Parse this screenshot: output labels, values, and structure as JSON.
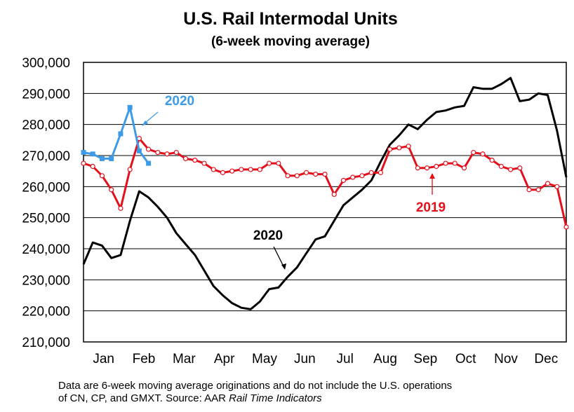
{
  "chart_data": {
    "type": "line",
    "title": "U.S. Rail Intermodal Units",
    "subtitle": "(6-week moving average)",
    "xlabel": "",
    "ylabel": "",
    "ylim": [
      210000,
      300000
    ],
    "yticks": [
      "300,000",
      "290,000",
      "280,000",
      "270,000",
      "260,000",
      "250,000",
      "240,000",
      "230,000",
      "220,000",
      "210,000"
    ],
    "ytick_values": [
      300000,
      290000,
      280000,
      270000,
      260000,
      250000,
      240000,
      230000,
      220000,
      210000
    ],
    "month_labels": [
      "Jan",
      "Feb",
      "Mar",
      "Apr",
      "May",
      "Jun",
      "Jul",
      "Aug",
      "Sep",
      "Oct",
      "Nov",
      "Dec"
    ],
    "weeks_total": 52,
    "series": [
      {
        "name": "2020",
        "color": "#000000",
        "marker": "none",
        "values": [
          235000,
          242000,
          241000,
          237000,
          238000,
          249000,
          258500,
          256500,
          253500,
          250000,
          245000,
          241500,
          238000,
          233000,
          228000,
          225000,
          222500,
          221000,
          220500,
          223000,
          227000,
          227500,
          231000,
          234000,
          238500,
          243000,
          244000,
          249000,
          254000,
          256500,
          259000,
          262000,
          268000,
          273500,
          276500,
          280000,
          278500,
          281500,
          284000,
          284500,
          285500,
          286000,
          292000,
          291500,
          291500,
          293000,
          295000,
          287500,
          288000,
          290000,
          289500,
          278000,
          263000
        ]
      },
      {
        "name": "2019",
        "color": "#e3101c",
        "marker": "circle",
        "values": [
          267500,
          266500,
          263500,
          259000,
          253000,
          265500,
          275500,
          272000,
          271000,
          270500,
          271000,
          269000,
          268500,
          267500,
          265500,
          264500,
          265000,
          265500,
          265500,
          265500,
          267500,
          267500,
          263500,
          263500,
          264500,
          264000,
          264000,
          257500,
          262000,
          263000,
          263500,
          264500,
          264500,
          272000,
          272500,
          273000,
          266000,
          266000,
          266500,
          267500,
          267500,
          266000,
          271000,
          270500,
          268500,
          266500,
          265500,
          266000,
          259000,
          259000,
          261000,
          260000,
          247000
        ]
      },
      {
        "name": "2020",
        "color": "#3d9ae6",
        "marker": "square",
        "values": [
          271000,
          270500,
          269000,
          269000,
          277000,
          285500,
          271500,
          267500
        ]
      }
    ],
    "annotations": [
      {
        "text": "2020",
        "color": "#3d9ae6"
      },
      {
        "text": "2019",
        "color": "#e3101c"
      },
      {
        "text": "2020",
        "color": "#000000"
      }
    ],
    "grid": true,
    "legend": "none"
  },
  "footnote": {
    "line1": "Data are 6-week moving average originations and do not include the U.S. operations",
    "line2_prefix": "of CN, CP, and GMXT.   Source: AAR ",
    "line2_italic": "Rail Time Indicators"
  }
}
